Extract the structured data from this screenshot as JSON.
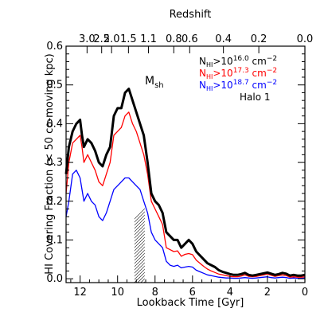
{
  "chart_data": {
    "type": "line",
    "title": "",
    "xlabel": "Lookback Time [Gyr]",
    "ylabel": "HI Covering Fraction (< 50 co-moving kpc)",
    "top_xlabel": "Redshift",
    "xlim": [
      12.75,
      0
    ],
    "ylim": [
      -0.01,
      0.6
    ],
    "x_ticks": [
      12,
      10,
      8,
      6,
      4,
      2,
      0
    ],
    "x_tick_labels": [
      "12",
      "10",
      "8",
      "6",
      "4",
      "2",
      "0"
    ],
    "y_ticks": [
      0.0,
      0.1,
      0.2,
      0.3,
      0.4,
      0.5,
      0.6
    ],
    "y_tick_labels": [
      "0.0",
      "0.1",
      "0.2",
      "0.3",
      "0.4",
      "0.5",
      "0.6"
    ],
    "top_ticks": [
      {
        "lookback": 11.63,
        "label": "3.0"
      },
      {
        "lookback": 10.85,
        "label": "2.5"
      },
      {
        "lookback": 10.32,
        "label": "2.0"
      },
      {
        "lookback": 9.42,
        "label": "1.5"
      },
      {
        "lookback": 8.35,
        "label": "1.1"
      },
      {
        "lookback": 7.0,
        "label": "0.8"
      },
      {
        "lookback": 6.15,
        "label": "0.6"
      },
      {
        "lookback": 4.35,
        "label": "0.4"
      },
      {
        "lookback": 2.46,
        "label": "0.2"
      },
      {
        "lookback": 0.0,
        "label": "0.0"
      }
    ],
    "annotations": {
      "band_label": "M",
      "band_subscript": "sh",
      "band_range": [
        8.55,
        9.1
      ],
      "halo_label": "Halo 1"
    },
    "legend": {
      "placement": "top-right",
      "entries": [
        {
          "prefix": "N",
          "sub": "HI",
          "mid": ">10",
          "sup": "16.0",
          "unit": " cm",
          "unit_sup": "−2",
          "color": "#000000"
        },
        {
          "prefix": "N",
          "sub": "HI",
          "mid": ">10",
          "sup": "17.3",
          "unit": " cm",
          "unit_sup": "−2",
          "color": "#ff0000"
        },
        {
          "prefix": "N",
          "sub": "HI",
          "mid": ">10",
          "sup": "18.7",
          "unit": " cm",
          "unit_sup": "−2",
          "color": "#0000ff"
        }
      ]
    },
    "x": [
      12.75,
      12.6,
      12.4,
      12.2,
      12.0,
      11.9,
      11.8,
      11.6,
      11.4,
      11.2,
      11.0,
      10.8,
      10.6,
      10.4,
      10.2,
      10.0,
      9.8,
      9.6,
      9.4,
      9.2,
      9.0,
      8.8,
      8.6,
      8.4,
      8.2,
      8.0,
      7.8,
      7.6,
      7.4,
      7.2,
      7.0,
      6.8,
      6.6,
      6.4,
      6.2,
      6.0,
      5.8,
      5.6,
      5.4,
      5.2,
      5.0,
      4.8,
      4.6,
      4.4,
      4.2,
      4.0,
      3.8,
      3.6,
      3.4,
      3.2,
      3.0,
      2.8,
      2.6,
      2.4,
      2.2,
      2.0,
      1.8,
      1.6,
      1.4,
      1.2,
      1.0,
      0.8,
      0.6,
      0.4,
      0.2,
      0.0
    ],
    "series": [
      {
        "name": "",
        "color": "#000000",
        "width": 3,
        "values": [
          0.27,
          0.34,
          0.38,
          0.4,
          0.41,
          0.37,
          0.34,
          0.36,
          0.35,
          0.33,
          0.3,
          0.29,
          0.32,
          0.34,
          0.42,
          0.44,
          0.44,
          0.48,
          0.49,
          0.46,
          0.43,
          0.4,
          0.37,
          0.3,
          0.22,
          0.2,
          0.19,
          0.17,
          0.12,
          0.11,
          0.1,
          0.1,
          0.08,
          0.09,
          0.1,
          0.09,
          0.07,
          0.06,
          0.05,
          0.04,
          0.035,
          0.03,
          0.022,
          0.018,
          0.015,
          0.012,
          0.01,
          0.01,
          0.012,
          0.015,
          0.01,
          0.008,
          0.01,
          0.012,
          0.014,
          0.016,
          0.013,
          0.01,
          0.012,
          0.015,
          0.013,
          0.008,
          0.01,
          0.008,
          0.008,
          0.01
        ]
      },
      {
        "name": "",
        "color": "#ff0000",
        "width": 1.3,
        "values": [
          0.22,
          0.3,
          0.35,
          0.36,
          0.37,
          0.34,
          0.3,
          0.32,
          0.3,
          0.28,
          0.25,
          0.24,
          0.27,
          0.3,
          0.37,
          0.38,
          0.39,
          0.42,
          0.43,
          0.4,
          0.38,
          0.35,
          0.32,
          0.27,
          0.2,
          0.18,
          0.16,
          0.14,
          0.08,
          0.075,
          0.07,
          0.072,
          0.058,
          0.063,
          0.065,
          0.062,
          0.048,
          0.04,
          0.032,
          0.025,
          0.02,
          0.016,
          0.012,
          0.01,
          0.008,
          0.006,
          0.005,
          0.005,
          0.007,
          0.01,
          0.006,
          0.005,
          0.006,
          0.008,
          0.01,
          0.012,
          0.009,
          0.006,
          0.008,
          0.01,
          0.008,
          0.004,
          0.005,
          0.004,
          0.004,
          0.005
        ]
      },
      {
        "name": "",
        "color": "#0000ff",
        "width": 1.3,
        "values": [
          0.16,
          0.2,
          0.27,
          0.28,
          0.26,
          0.23,
          0.2,
          0.22,
          0.2,
          0.19,
          0.16,
          0.15,
          0.17,
          0.2,
          0.23,
          0.24,
          0.25,
          0.26,
          0.26,
          0.25,
          0.24,
          0.23,
          0.2,
          0.17,
          0.12,
          0.1,
          0.09,
          0.08,
          0.045,
          0.035,
          0.032,
          0.035,
          0.028,
          0.03,
          0.032,
          0.03,
          0.022,
          0.018,
          0.014,
          0.01,
          0.008,
          0.006,
          0.004,
          0.003,
          0.002,
          0.002,
          0.001,
          0.001,
          0.002,
          0.003,
          0.002,
          0.001,
          0.002,
          0.003,
          0.004,
          0.005,
          0.003,
          0.002,
          0.003,
          0.004,
          0.003,
          0.001,
          0.002,
          0.001,
          0.001,
          0.002
        ]
      }
    ]
  }
}
